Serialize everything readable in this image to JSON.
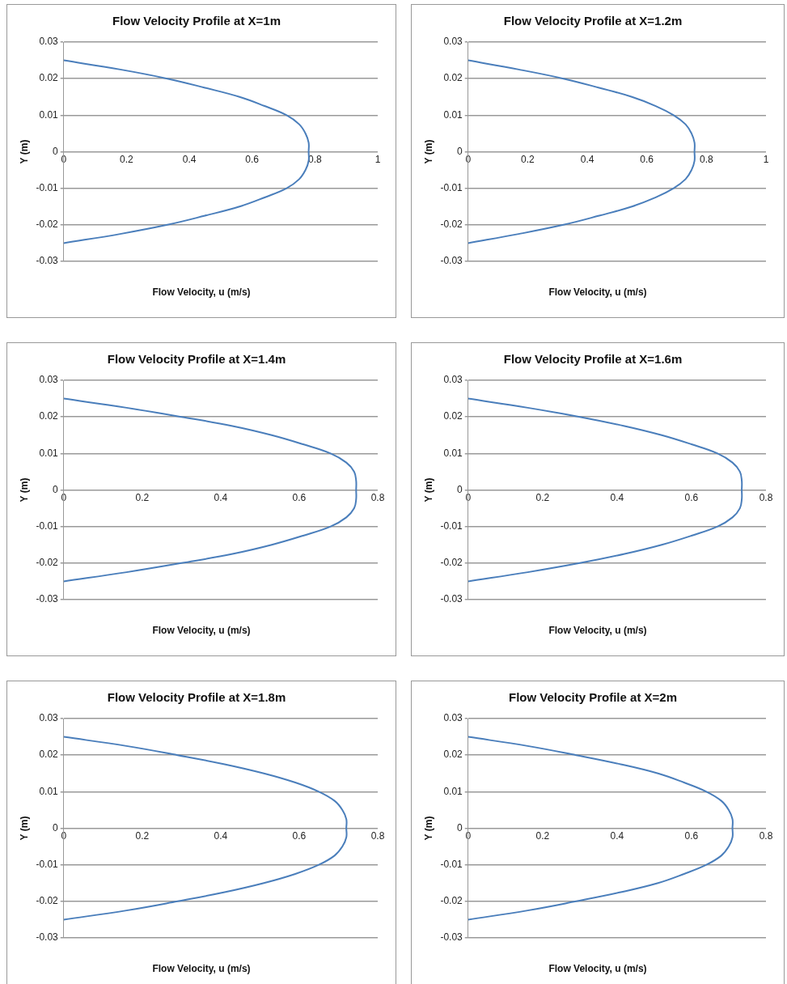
{
  "chart_data": [
    {
      "type": "line",
      "title": "Flow Velocity Profile at X=1m",
      "xlabel": "Flow Velocity, u (m/s)",
      "ylabel": "Y (m)",
      "color": "#4a7ebb",
      "marker": "none",
      "grid": "y",
      "xlim": [
        0,
        1
      ],
      "xticks": [
        0,
        0.2,
        0.4,
        0.6,
        0.8,
        1
      ],
      "ylim": [
        -0.03,
        0.03
      ],
      "yticks": [
        -0.03,
        -0.02,
        -0.01,
        0,
        0.01,
        0.02,
        0.03
      ],
      "x": [
        0,
        0.18,
        0.33,
        0.45,
        0.56,
        0.64,
        0.71,
        0.75,
        0.77,
        0.78,
        0.78,
        0.78,
        0.77,
        0.75,
        0.71,
        0.64,
        0.56,
        0.45,
        0.33,
        0.18,
        0
      ],
      "values": [
        0.025,
        0.0225,
        0.02,
        0.0175,
        0.015,
        0.0125,
        0.01,
        0.0075,
        0.005,
        0.0025,
        0,
        -0.0025,
        -0.005,
        -0.0075,
        -0.01,
        -0.0125,
        -0.015,
        -0.0175,
        -0.02,
        -0.0225,
        -0.025
      ]
    },
    {
      "type": "line",
      "title": "Flow Velocity Profile at X=1.2m",
      "xlabel": "Flow Velocity, u (m/s)",
      "ylabel": "Y (m)",
      "color": "#4a7ebb",
      "marker": "none",
      "grid": "y",
      "xlim": [
        0,
        1
      ],
      "xticks": [
        0,
        0.2,
        0.4,
        0.6,
        0.8,
        1
      ],
      "ylim": [
        -0.03,
        0.03
      ],
      "yticks": [
        -0.03,
        -0.02,
        -0.01,
        0,
        0.01,
        0.02,
        0.03
      ],
      "x": [
        0,
        0.17,
        0.32,
        0.44,
        0.55,
        0.63,
        0.69,
        0.73,
        0.75,
        0.76,
        0.76,
        0.76,
        0.75,
        0.73,
        0.69,
        0.63,
        0.55,
        0.44,
        0.32,
        0.17,
        0
      ],
      "values": [
        0.025,
        0.0225,
        0.02,
        0.0175,
        0.015,
        0.0125,
        0.01,
        0.0075,
        0.005,
        0.0025,
        0,
        -0.0025,
        -0.005,
        -0.0075,
        -0.01,
        -0.0125,
        -0.015,
        -0.0175,
        -0.02,
        -0.0225,
        -0.025
      ]
    },
    {
      "type": "line",
      "title": "Flow Velocity Profile at X=1.4m",
      "xlabel": "Flow Velocity, u (m/s)",
      "ylabel": "Y (m)",
      "color": "#4a7ebb",
      "marker": "none",
      "grid": "y",
      "xlim": [
        0,
        0.8
      ],
      "xticks": [
        0,
        0.2,
        0.4,
        0.6,
        0.8
      ],
      "ylim": [
        -0.03,
        0.03
      ],
      "yticks": [
        -0.03,
        -0.02,
        -0.01,
        0,
        0.01,
        0.02,
        0.03
      ],
      "x": [
        0,
        0.16,
        0.3,
        0.43,
        0.53,
        0.61,
        0.68,
        0.72,
        0.74,
        0.745,
        0.745,
        0.745,
        0.74,
        0.72,
        0.68,
        0.61,
        0.53,
        0.43,
        0.3,
        0.16,
        0
      ],
      "values": [
        0.025,
        0.0225,
        0.02,
        0.0175,
        0.015,
        0.0125,
        0.01,
        0.0075,
        0.005,
        0.0025,
        0,
        -0.0025,
        -0.005,
        -0.0075,
        -0.01,
        -0.0125,
        -0.015,
        -0.0175,
        -0.02,
        -0.0225,
        -0.025
      ]
    },
    {
      "type": "line",
      "title": "Flow Velocity Profile at X=1.6m",
      "xlabel": "Flow Velocity, u (m/s)",
      "ylabel": "Y (m)",
      "color": "#4a7ebb",
      "marker": "none",
      "grid": "y",
      "xlim": [
        0,
        0.8
      ],
      "xticks": [
        0,
        0.2,
        0.4,
        0.6,
        0.8
      ],
      "ylim": [
        -0.03,
        0.03
      ],
      "yticks": [
        -0.03,
        -0.02,
        -0.01,
        0,
        0.01,
        0.02,
        0.03
      ],
      "x": [
        0,
        0.16,
        0.3,
        0.42,
        0.52,
        0.6,
        0.67,
        0.71,
        0.73,
        0.735,
        0.735,
        0.735,
        0.73,
        0.71,
        0.67,
        0.6,
        0.52,
        0.42,
        0.3,
        0.16,
        0
      ],
      "values": [
        0.025,
        0.0225,
        0.02,
        0.0175,
        0.015,
        0.0125,
        0.01,
        0.0075,
        0.005,
        0.0025,
        0,
        -0.0025,
        -0.005,
        -0.0075,
        -0.01,
        -0.0125,
        -0.015,
        -0.0175,
        -0.02,
        -0.0225,
        -0.025
      ]
    },
    {
      "type": "line",
      "title": "Flow Velocity Profile at X=1.8m",
      "xlabel": "Flow Velocity, u (m/s)",
      "ylabel": "Y (m)",
      "color": "#4a7ebb",
      "marker": "none",
      "grid": "y",
      "xlim": [
        0,
        0.8
      ],
      "xticks": [
        0,
        0.2,
        0.4,
        0.6,
        0.8
      ],
      "ylim": [
        -0.03,
        0.03
      ],
      "yticks": [
        -0.03,
        -0.02,
        -0.01,
        0,
        0.01,
        0.02,
        0.03
      ],
      "x": [
        0,
        0.16,
        0.29,
        0.41,
        0.51,
        0.59,
        0.65,
        0.69,
        0.71,
        0.72,
        0.72,
        0.72,
        0.71,
        0.69,
        0.65,
        0.59,
        0.51,
        0.41,
        0.29,
        0.16,
        0
      ],
      "values": [
        0.025,
        0.0225,
        0.02,
        0.0175,
        0.015,
        0.0125,
        0.01,
        0.0075,
        0.005,
        0.0025,
        0,
        -0.0025,
        -0.005,
        -0.0075,
        -0.01,
        -0.0125,
        -0.015,
        -0.0175,
        -0.02,
        -0.0225,
        -0.025
      ]
    },
    {
      "type": "line",
      "title": "Flow Velocity Profile at X=2m",
      "xlabel": "Flow Velocity, u (m/s)",
      "ylabel": "Y (m)",
      "color": "#4a7ebb",
      "marker": "none",
      "grid": "y",
      "xlim": [
        0,
        0.8
      ],
      "xticks": [
        0,
        0.2,
        0.4,
        0.6,
        0.8
      ],
      "ylim": [
        -0.03,
        0.03
      ],
      "yticks": [
        -0.03,
        -0.02,
        -0.01,
        0,
        0.01,
        0.02,
        0.03
      ],
      "x": [
        0,
        0.16,
        0.29,
        0.41,
        0.51,
        0.58,
        0.64,
        0.68,
        0.7,
        0.71,
        0.71,
        0.71,
        0.7,
        0.68,
        0.64,
        0.58,
        0.51,
        0.41,
        0.29,
        0.16,
        0
      ],
      "values": [
        0.025,
        0.0225,
        0.02,
        0.0175,
        0.015,
        0.0125,
        0.01,
        0.0075,
        0.005,
        0.0025,
        0,
        -0.0025,
        -0.005,
        -0.0075,
        -0.01,
        -0.0125,
        -0.015,
        -0.0175,
        -0.02,
        -0.0225,
        -0.025
      ]
    }
  ]
}
